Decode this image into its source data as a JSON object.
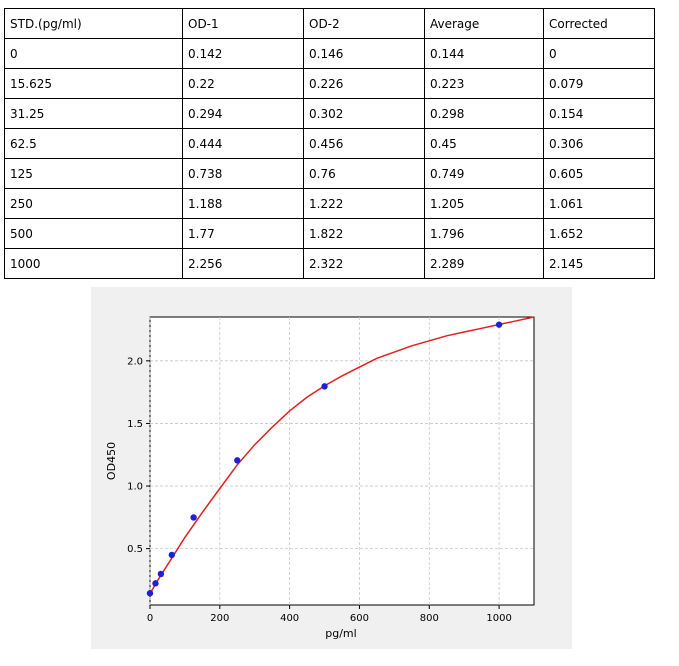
{
  "table": {
    "headers": [
      "STD.(pg/ml)",
      "OD-1",
      "OD-2",
      "Average",
      "Corrected"
    ],
    "rows": [
      [
        "0",
        "0.142",
        "0.146",
        "0.144",
        "0"
      ],
      [
        "15.625",
        "0.22",
        "0.226",
        "0.223",
        "0.079"
      ],
      [
        "31.25",
        "0.294",
        "0.302",
        "0.298",
        "0.154"
      ],
      [
        "62.5",
        "0.444",
        "0.456",
        "0.45",
        "0.306"
      ],
      [
        "125",
        "0.738",
        "0.76",
        "0.749",
        "0.605"
      ],
      [
        "250",
        "1.188",
        "1.222",
        "1.205",
        "1.061"
      ],
      [
        "500",
        "1.77",
        "1.822",
        "1.796",
        "1.652"
      ],
      [
        "1000",
        "2.256",
        "2.322",
        "2.289",
        "2.145"
      ]
    ]
  },
  "chart_data": {
    "type": "scatter",
    "title": "",
    "xlabel": "pg/ml",
    "ylabel": "OD450",
    "xlim": [
      0,
      1100
    ],
    "ylim": [
      0.05,
      2.35
    ],
    "xticks": [
      0,
      200,
      400,
      600,
      800,
      1000
    ],
    "yticks": [
      0.5,
      1.0,
      1.5,
      2.0
    ],
    "xtick_labels": [
      "0",
      "200",
      "400",
      "600",
      "800",
      "1000"
    ],
    "ytick_labels": [
      "0.5",
      "1.0",
      "1.5",
      "2.0"
    ],
    "grid": true,
    "points": {
      "x": [
        0,
        15.625,
        31.25,
        62.5,
        125,
        250,
        500,
        1000
      ],
      "y": [
        0.144,
        0.223,
        0.298,
        0.45,
        0.749,
        1.205,
        1.796,
        2.289
      ],
      "color": "#1f1fd6"
    },
    "fit_curve": {
      "color": "#e02020",
      "x": [
        0,
        25,
        50,
        75,
        100,
        150,
        200,
        250,
        300,
        350,
        400,
        450,
        500,
        550,
        600,
        650,
        700,
        750,
        800,
        850,
        900,
        950,
        1000,
        1050,
        1100
      ],
      "y": [
        0.14,
        0.26,
        0.37,
        0.48,
        0.59,
        0.79,
        0.98,
        1.17,
        1.33,
        1.47,
        1.6,
        1.71,
        1.8,
        1.88,
        1.95,
        2.02,
        2.07,
        2.12,
        2.16,
        2.2,
        2.23,
        2.26,
        2.29,
        2.32,
        2.35
      ]
    }
  }
}
